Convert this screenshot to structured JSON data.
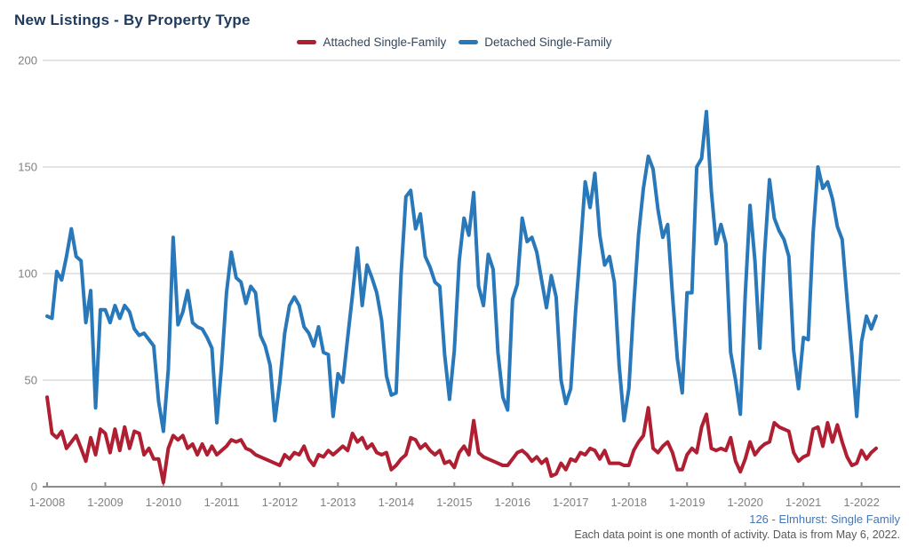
{
  "title": "New Listings - By Property Type",
  "legend": {
    "items": [
      {
        "label": "Attached Single-Family",
        "color": "#b01e32"
      },
      {
        "label": "Detached Single-Family",
        "color": "#2878ba"
      }
    ]
  },
  "footer": {
    "source": "126 - Elmhurst: Single Family",
    "note": "Each data point is one month of activity. Data is from May 6, 2022."
  },
  "colors": {
    "attached_line": "#b01e32",
    "detached_line": "#2878ba",
    "gridline": "#c9c9c9",
    "axis_line": "#8c8c8c",
    "tick_label": "#808080",
    "title_text": "#1e3a5f",
    "source_text": "#4576b5",
    "note_text": "#595959"
  },
  "chart_data": {
    "type": "line",
    "title": "New Listings - By Property Type",
    "xlabel": "",
    "ylabel": "",
    "ylim": [
      0,
      200
    ],
    "y_ticks": [
      0,
      50,
      100,
      150,
      200
    ],
    "x_tick_labels": [
      "1-2008",
      "1-2009",
      "1-2010",
      "1-2011",
      "1-2012",
      "1-2013",
      "1-2014",
      "1-2015",
      "1-2016",
      "1-2017",
      "1-2018",
      "1-2019",
      "1-2020",
      "1-2021",
      "1-2022"
    ],
    "months_per_tick": 12,
    "x_start_month": "January 2008",
    "x_end_month": "April 2022",
    "grid": "horizontal",
    "legend_position": "top-center",
    "series": [
      {
        "name": "Attached Single-Family",
        "color": "#b01e32",
        "values": [
          42,
          25,
          23,
          26,
          18,
          21,
          24,
          18,
          12,
          23,
          15,
          27,
          25,
          16,
          27,
          17,
          28,
          18,
          26,
          25,
          15,
          18,
          13,
          13,
          2,
          18,
          24,
          22,
          24,
          18,
          20,
          15,
          20,
          15,
          19,
          15,
          17,
          19,
          22,
          21,
          22,
          18,
          17,
          15,
          14,
          13,
          12,
          11,
          10,
          15,
          13,
          16,
          15,
          19,
          13,
          10,
          15,
          14,
          17,
          15,
          17,
          19,
          17,
          25,
          21,
          23,
          18,
          20,
          16,
          15,
          16,
          8,
          10,
          13,
          15,
          23,
          22,
          18,
          20,
          17,
          15,
          17,
          11,
          12,
          9,
          16,
          19,
          15,
          31,
          16,
          14,
          13,
          12,
          11,
          10,
          10,
          13,
          16,
          17,
          15,
          12,
          14,
          11,
          13,
          5,
          6,
          11,
          8,
          13,
          12,
          16,
          15,
          18,
          17,
          13,
          17,
          11,
          11,
          11,
          10,
          10,
          17,
          21,
          24,
          37,
          18,
          16,
          19,
          21,
          16,
          8,
          8,
          15,
          18,
          16,
          28,
          34,
          18,
          17,
          18,
          17,
          23,
          12,
          7,
          13,
          21,
          15,
          18,
          20,
          21,
          30,
          28,
          27,
          26,
          16,
          12,
          14,
          15,
          27,
          28,
          19,
          30,
          21,
          29,
          21,
          14,
          10,
          11,
          17,
          13,
          16,
          18
        ]
      },
      {
        "name": "Detached Single-Family",
        "color": "#2878ba",
        "values": [
          80,
          79,
          101,
          97,
          108,
          121,
          108,
          106,
          77,
          92,
          37,
          83,
          83,
          77,
          85,
          79,
          85,
          82,
          74,
          71,
          72,
          69,
          66,
          40,
          26,
          55,
          117,
          76,
          82,
          92,
          77,
          75,
          74,
          70,
          65,
          30,
          57,
          91,
          110,
          98,
          96,
          86,
          94,
          91,
          71,
          66,
          57,
          31,
          49,
          72,
          85,
          89,
          85,
          75,
          72,
          66,
          75,
          63,
          62,
          33,
          53,
          49,
          70,
          90,
          112,
          85,
          104,
          98,
          91,
          78,
          52,
          43,
          44,
          99,
          136,
          139,
          121,
          128,
          108,
          103,
          96,
          94,
          62,
          41,
          64,
          106,
          126,
          118,
          138,
          94,
          85,
          109,
          102,
          63,
          42,
          36,
          88,
          95,
          126,
          115,
          117,
          110,
          97,
          84,
          99,
          89,
          50,
          39,
          46,
          82,
          112,
          143,
          131,
          147,
          118,
          104,
          108,
          96,
          57,
          31,
          46,
          85,
          118,
          140,
          155,
          149,
          130,
          117,
          123,
          90,
          60,
          44,
          91,
          91,
          150,
          154,
          176,
          139,
          114,
          123,
          114,
          63,
          50,
          34,
          90,
          132,
          106,
          65,
          110,
          144,
          126,
          120,
          116,
          108,
          64,
          46,
          70,
          69,
          119,
          150,
          140,
          143,
          135,
          122,
          116,
          88,
          62,
          33,
          68,
          80,
          74,
          80
        ]
      }
    ]
  }
}
